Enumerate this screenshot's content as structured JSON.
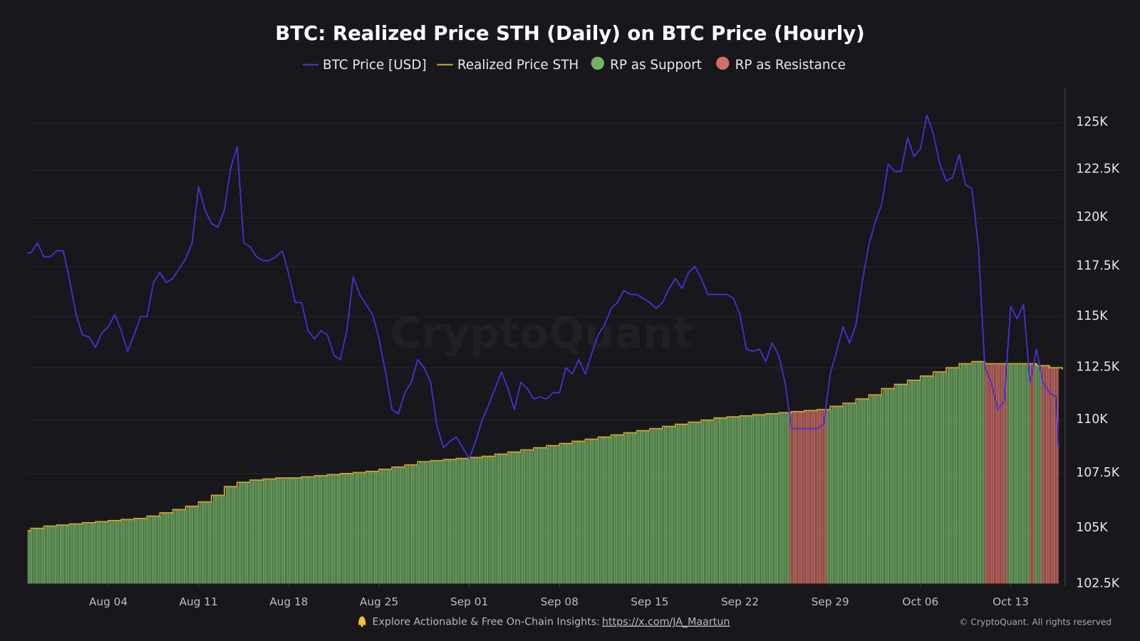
{
  "chart_data": {
    "type": "line",
    "title": "BTC: Realized Price STH (Daily) on BTC Price (Hourly)",
    "legend": {
      "placement": "top",
      "items": [
        {
          "label": "BTC Price [USD]",
          "kind": "line",
          "color": "#4a2fd6"
        },
        {
          "label": "Realized Price STH",
          "kind": "line",
          "color": "#c9a227"
        },
        {
          "label": "RP as Support",
          "kind": "dot",
          "color": "#74b266"
        },
        {
          "label": "RP as Resistance",
          "kind": "dot",
          "color": "#cf6f66"
        }
      ]
    },
    "y_axis": {
      "scale": "log",
      "position": "right",
      "range": [
        102.5,
        126.5
      ],
      "unit": "K USD",
      "ticks": [
        102.5,
        105,
        107.5,
        110,
        112.5,
        115,
        117.5,
        120,
        122.5,
        125
      ],
      "tick_labels": [
        "102.5K",
        "105K",
        "107.5K",
        "110K",
        "112.5K",
        "115K",
        "117.5K",
        "120K",
        "122.5K",
        "125K"
      ],
      "grid": true
    },
    "x_axis": {
      "range": [
        "Jul 28 18:00",
        "Oct 16 18:00"
      ],
      "tick_labels": [
        "Aug 04",
        "Aug 11",
        "Aug 18",
        "Aug 25",
        "Sep 01",
        "Sep 08",
        "Sep 15",
        "Sep 22",
        "Sep 29",
        "Oct 06",
        "Oct 13"
      ]
    },
    "series": [
      {
        "name": "BTC Price [USD]",
        "unit": "K USD",
        "start": "Jul 29 00:00",
        "step_hours": 12,
        "values": [
          118.1,
          118.6,
          117.9,
          117.9,
          118.2,
          118.2,
          116.7,
          115.0,
          114.0,
          113.9,
          113.4,
          114.1,
          114.4,
          115.0,
          114.2,
          113.2,
          114.0,
          114.9,
          114.9,
          116.6,
          117.1,
          116.6,
          116.8,
          117.3,
          117.8,
          118.6,
          121.5,
          120.3,
          119.6,
          119.4,
          120.3,
          122.5,
          123.6,
          118.6,
          118.4,
          117.9,
          117.7,
          117.7,
          117.9,
          118.2,
          117.0,
          115.6,
          115.6,
          114.2,
          113.8,
          114.2,
          114.0,
          113.0,
          112.8,
          114.2,
          116.9,
          116.0,
          115.5,
          115.0,
          113.8,
          112.2,
          110.4,
          110.2,
          111.2,
          111.7,
          112.8,
          112.4,
          111.7,
          109.6,
          108.6,
          108.9,
          109.1,
          108.6,
          108.1,
          108.9,
          109.9,
          110.6,
          111.4,
          112.2,
          111.4,
          110.4,
          111.7,
          111.4,
          110.9,
          111.0,
          110.9,
          111.2,
          111.2,
          112.4,
          112.1,
          112.8,
          112.1,
          113.1,
          114.0,
          114.5,
          115.3,
          115.6,
          116.2,
          116.0,
          116.0,
          115.8,
          115.6,
          115.3,
          115.6,
          116.3,
          116.8,
          116.3,
          117.1,
          117.4,
          116.8,
          116.0,
          116.0,
          116.0,
          116.0,
          115.8,
          115.0,
          113.3,
          113.2,
          113.3,
          112.7,
          113.6,
          113.0,
          111.7,
          109.5,
          109.5,
          109.5,
          109.5,
          109.5,
          109.7,
          112.1,
          113.2,
          114.4,
          113.6,
          114.5,
          116.7,
          118.5,
          119.7,
          120.6,
          122.7,
          122.3,
          122.3,
          124.1,
          123.1,
          123.5,
          125.3,
          124.3,
          122.7,
          121.8,
          122.0,
          123.2,
          121.6,
          121.4,
          118.4,
          112.4,
          111.7,
          110.4,
          110.8,
          115.4,
          114.8,
          115.5,
          111.7,
          113.3,
          111.7,
          111.2,
          111.0,
          108.6
        ]
      },
      {
        "name": "Realized Price STH",
        "unit": "K USD",
        "start": "Jul 28",
        "step_hours": 24,
        "values": [
          104.8,
          104.9,
          105.0,
          105.05,
          105.1,
          105.15,
          105.2,
          105.25,
          105.3,
          105.35,
          105.45,
          105.6,
          105.75,
          105.9,
          106.1,
          106.4,
          106.8,
          107.0,
          107.1,
          107.15,
          107.2,
          107.2,
          107.25,
          107.3,
          107.35,
          107.4,
          107.45,
          107.5,
          107.6,
          107.7,
          107.8,
          107.95,
          108.0,
          108.05,
          108.1,
          108.15,
          108.2,
          108.3,
          108.4,
          108.5,
          108.6,
          108.7,
          108.8,
          108.9,
          109.0,
          109.1,
          109.2,
          109.3,
          109.4,
          109.5,
          109.6,
          109.7,
          109.8,
          109.9,
          110.0,
          110.05,
          110.1,
          110.15,
          110.2,
          110.25,
          110.3,
          110.35,
          110.4,
          110.55,
          110.7,
          110.9,
          111.1,
          111.4,
          111.6,
          111.8,
          112.0,
          112.2,
          112.4,
          112.6,
          112.7,
          112.6,
          112.6,
          112.6,
          112.6,
          112.5,
          112.4,
          112.35
        ]
      }
    ]
  },
  "watermark": "CryptoQuant",
  "footer": {
    "bell_icon": "bell-icon",
    "text": "Explore Actionable & Free On-Chain Insights:",
    "link": "https://x.com/JA_Maartun",
    "copyright": "© CryptoQuant. All rights reserved"
  }
}
